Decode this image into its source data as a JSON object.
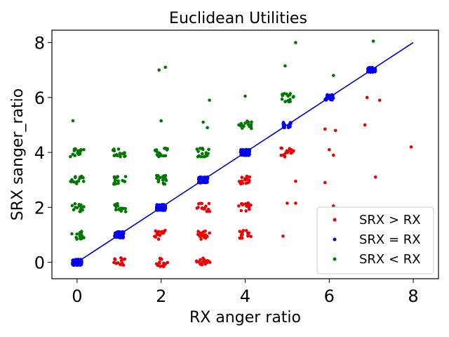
{
  "chart_data": {
    "type": "scatter",
    "title": "Euclidean Utilities",
    "xlabel": "RX anger ratio",
    "ylabel": "SRX sanger_ratio",
    "xlim": [
      -0.6,
      8.6
    ],
    "ylim": [
      -0.6,
      8.45
    ],
    "xticks": [
      "0",
      "2",
      "4",
      "6",
      "8"
    ],
    "yticks": [
      "0",
      "2",
      "4",
      "6",
      "8"
    ],
    "grid": false,
    "legend_position": "lower right",
    "reference_line": {
      "x": [
        0,
        8
      ],
      "y": [
        0,
        8
      ],
      "color": "#0000cc"
    },
    "series": [
      {
        "name": "SRX > RX",
        "color": "#ee0000",
        "points": [
          [
            1,
            0
          ],
          [
            2,
            0
          ],
          [
            3,
            0
          ],
          [
            2,
            1
          ],
          [
            3,
            1
          ],
          [
            4,
            1
          ],
          [
            4.9,
            0.95
          ],
          [
            3,
            2
          ],
          [
            4,
            2
          ],
          [
            5.0,
            2.15
          ],
          [
            5.2,
            2.15
          ],
          [
            6.1,
            2.05
          ],
          [
            4,
            3
          ],
          [
            5.2,
            2.95
          ],
          [
            5.9,
            2.9
          ],
          [
            7.1,
            3.1
          ],
          [
            5,
            4
          ],
          [
            6,
            4.1
          ],
          [
            6.1,
            3.9
          ],
          [
            7.95,
            4.2
          ],
          [
            5.9,
            4.85
          ],
          [
            6.15,
            4.8
          ],
          [
            6.85,
            5.0
          ],
          [
            6.9,
            6.0
          ],
          [
            7.2,
            5.9
          ]
        ]
      },
      {
        "name": "SRX = RX",
        "color": "#0000ee",
        "points": [
          [
            0,
            0
          ],
          [
            1,
            1
          ],
          [
            2,
            2
          ],
          [
            3,
            3
          ],
          [
            4,
            4
          ],
          [
            5,
            5
          ],
          [
            6,
            6
          ],
          [
            7,
            7
          ]
        ]
      },
      {
        "name": "SRX < RX",
        "color": "#007700",
        "points": [
          [
            0,
            1
          ],
          [
            0,
            2
          ],
          [
            0,
            3
          ],
          [
            0,
            4
          ],
          [
            -0.1,
            5.15
          ],
          [
            1,
            2
          ],
          [
            1,
            3
          ],
          [
            1,
            4
          ],
          [
            2,
            3
          ],
          [
            2,
            4
          ],
          [
            2,
            5.15
          ],
          [
            1.95,
            7.0
          ],
          [
            2.1,
            7.1
          ],
          [
            3,
            4
          ],
          [
            3,
            5.1
          ],
          [
            3.1,
            4.9
          ],
          [
            3.15,
            5.9
          ],
          [
            4,
            5
          ],
          [
            4.0,
            6.05
          ],
          [
            5,
            6
          ],
          [
            4.95,
            7.15
          ],
          [
            5.2,
            8.0
          ],
          [
            6.1,
            6.8
          ],
          [
            7.05,
            8.05
          ]
        ]
      }
    ]
  }
}
